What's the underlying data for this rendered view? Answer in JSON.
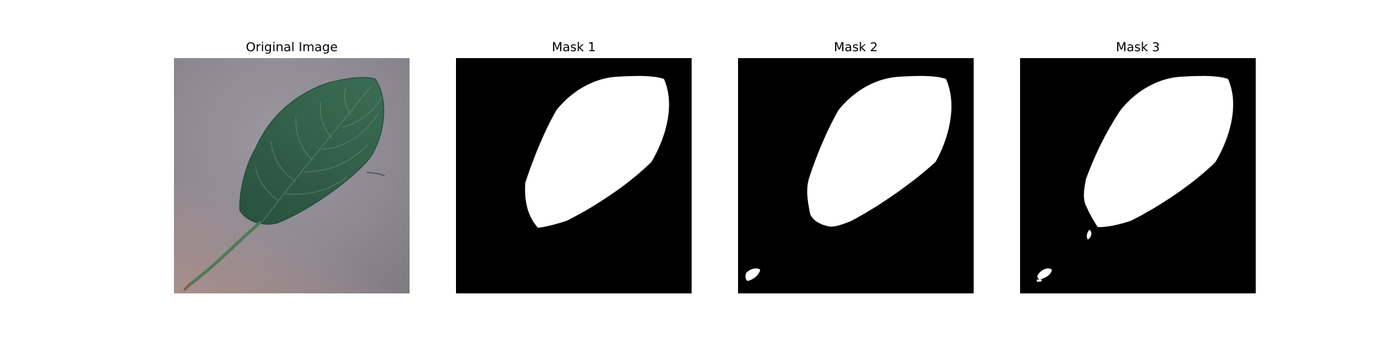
{
  "panels": [
    {
      "title": "Original Image"
    },
    {
      "title": "Mask 1"
    },
    {
      "title": "Mask 2"
    },
    {
      "title": "Mask 3"
    }
  ],
  "colors": {
    "background": "#ffffff",
    "mask_background": "#000000",
    "mask_foreground": "#ffffff",
    "leaf": "#2f5b44",
    "surface": "#8f8b92"
  }
}
